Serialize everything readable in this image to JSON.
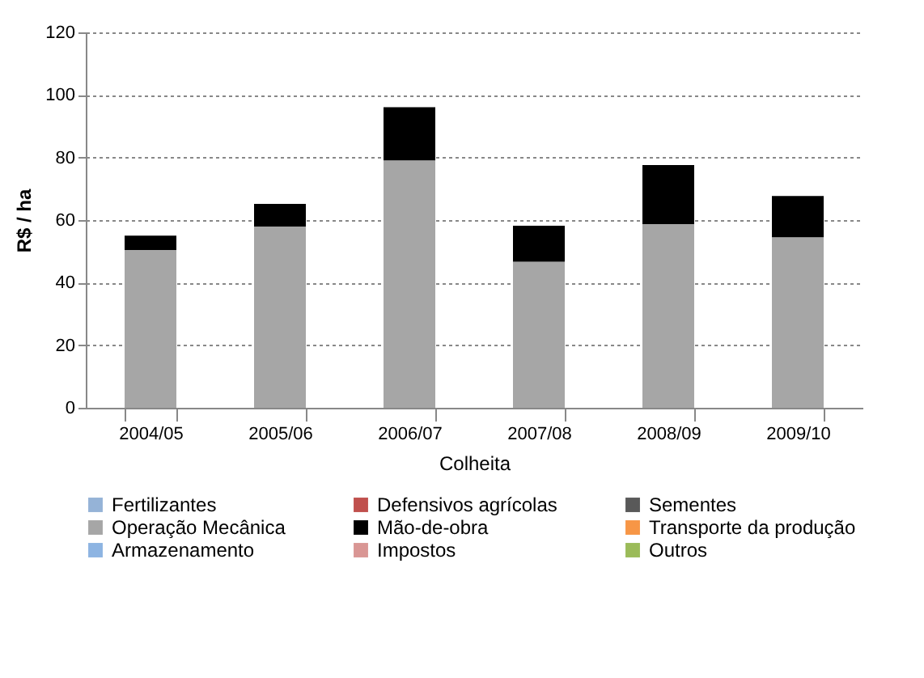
{
  "chart_data": {
    "type": "bar",
    "stacked": true,
    "xlabel": "Colheita",
    "ylabel": "R$ / ha",
    "categories": [
      "2004/05",
      "2005/06",
      "2006/07",
      "2007/08",
      "2008/09",
      "2009/10"
    ],
    "ylim": [
      0,
      120
    ],
    "yticks": [
      0,
      20,
      40,
      60,
      80,
      100,
      120
    ],
    "grid": "y",
    "legend": "bottom",
    "series": [
      {
        "name": "Fertilizantes",
        "color": "#95b3d7",
        "values": [
          0,
          0,
          0,
          0,
          0,
          0
        ]
      },
      {
        "name": "Defensivos agrícolas",
        "color": "#c0504d",
        "values": [
          0,
          0,
          0,
          0,
          0,
          0
        ]
      },
      {
        "name": "Sementes",
        "color": "#595959",
        "values": [
          0,
          0,
          0,
          0,
          0,
          0
        ]
      },
      {
        "name": "Operação Mecânica",
        "color": "#a6a6a6",
        "values": [
          50.4,
          57.9,
          79.1,
          46.7,
          58.7,
          54.5
        ]
      },
      {
        "name": "Mão-de-obra",
        "color": "#000000",
        "values": [
          4.6,
          7.3,
          17,
          11.5,
          18.9,
          13.2
        ]
      },
      {
        "name": "Transporte da produção",
        "color": "#f79646",
        "values": [
          0,
          0,
          0,
          0,
          0,
          0
        ]
      },
      {
        "name": "Armazenamento",
        "color": "#8db4e2",
        "values": [
          0,
          0,
          0,
          0,
          0,
          0
        ]
      },
      {
        "name": "Impostos",
        "color": "#d99694",
        "values": [
          0,
          0,
          0,
          0,
          0,
          0
        ]
      },
      {
        "name": "Outros",
        "color": "#9bbb59",
        "values": [
          0,
          0,
          0,
          0,
          0,
          0
        ]
      }
    ]
  }
}
